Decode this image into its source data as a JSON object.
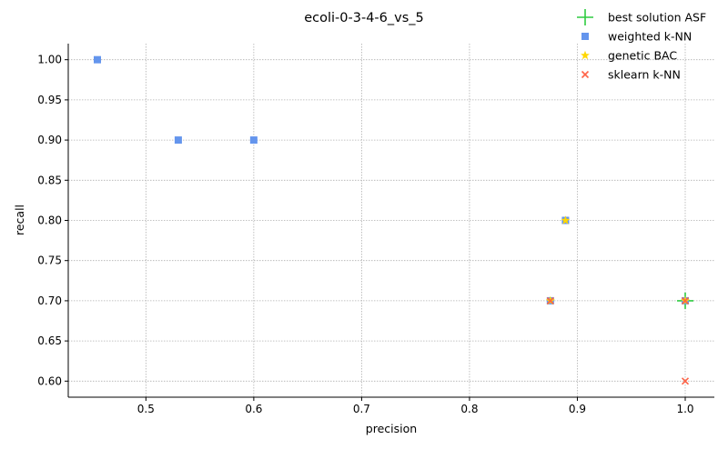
{
  "chart_data": {
    "type": "scatter",
    "title": "ecoli-0-3-4-6_vs_5",
    "xlabel": "precision",
    "ylabel": "recall",
    "xlim": [
      0.428,
      1.027
    ],
    "ylim": [
      0.58,
      1.02
    ],
    "xticks": [
      0.5,
      0.6,
      0.7,
      0.8,
      0.9,
      1.0
    ],
    "xtick_labels": [
      "0.5",
      "0.6",
      "0.7",
      "0.8",
      "0.9",
      "1.0"
    ],
    "yticks": [
      0.6,
      0.65,
      0.7,
      0.75,
      0.8,
      0.85,
      0.9,
      0.95,
      1.0
    ],
    "ytick_labels": [
      "0.60",
      "0.65",
      "0.70",
      "0.75",
      "0.80",
      "0.85",
      "0.90",
      "0.95",
      "1.00"
    ],
    "grid": true,
    "legend_position": "top-right",
    "series": [
      {
        "name": "best solution ASF",
        "marker": "plus",
        "color": "#2ecc40",
        "points": [
          [
            1.0,
            0.7
          ]
        ]
      },
      {
        "name": "weighted k-NN",
        "marker": "square",
        "color": "#6495ed",
        "points": [
          [
            0.455,
            1.0
          ],
          [
            0.53,
            0.9
          ],
          [
            0.6,
            0.9
          ],
          [
            0.889,
            0.8
          ],
          [
            0.875,
            0.7
          ],
          [
            1.0,
            0.7
          ]
        ]
      },
      {
        "name": "genetic BAC",
        "marker": "star",
        "color": "#ffd700",
        "points": [
          [
            0.889,
            0.8
          ],
          [
            0.875,
            0.7
          ],
          [
            1.0,
            0.7
          ]
        ]
      },
      {
        "name": "sklearn k-NN",
        "marker": "x",
        "color": "#ff6347",
        "points": [
          [
            0.875,
            0.7
          ],
          [
            1.0,
            0.7
          ],
          [
            1.0,
            0.6
          ]
        ]
      }
    ]
  }
}
